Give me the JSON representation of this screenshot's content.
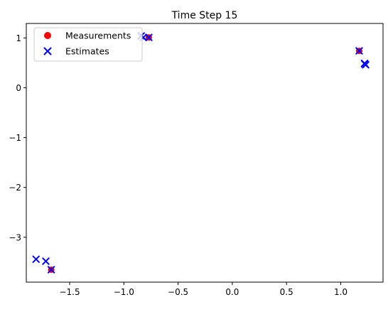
{
  "chart_data": {
    "type": "scatter",
    "title": "Time Step 15",
    "xlabel": "",
    "ylabel": "",
    "xlim": [
      -1.9,
      1.39
    ],
    "ylim": [
      -3.9,
      1.29
    ],
    "xticks": [
      -1.5,
      -1.0,
      -0.5,
      0.0,
      0.5,
      1.0
    ],
    "xtick_labels": [
      "−1.5",
      "−1.0",
      "−0.5",
      "0.0",
      "0.5",
      "1.0"
    ],
    "yticks": [
      1,
      0,
      -1,
      -2,
      -3
    ],
    "ytick_labels": [
      "1",
      "0",
      "−1",
      "−2",
      "−3"
    ],
    "grid": false,
    "legend_position": "upper-left",
    "series": [
      {
        "name": "Measurements",
        "marker": "circle",
        "color": "#ff0000",
        "points": [
          [
            -0.77,
            1.01
          ],
          [
            1.17,
            0.74
          ],
          [
            -1.67,
            -3.65
          ]
        ]
      },
      {
        "name": "Estimates",
        "marker": "x",
        "color": "#0000ff",
        "points": [
          [
            -0.84,
            1.04
          ],
          [
            -0.82,
            1.01
          ],
          [
            -0.77,
            1.01
          ],
          [
            1.17,
            0.74
          ],
          [
            1.22,
            0.48
          ],
          [
            1.23,
            0.46
          ],
          [
            1.22,
            0.49
          ],
          [
            -1.67,
            -3.65
          ],
          [
            -1.72,
            -3.48
          ],
          [
            -1.81,
            -3.44
          ]
        ]
      }
    ]
  }
}
